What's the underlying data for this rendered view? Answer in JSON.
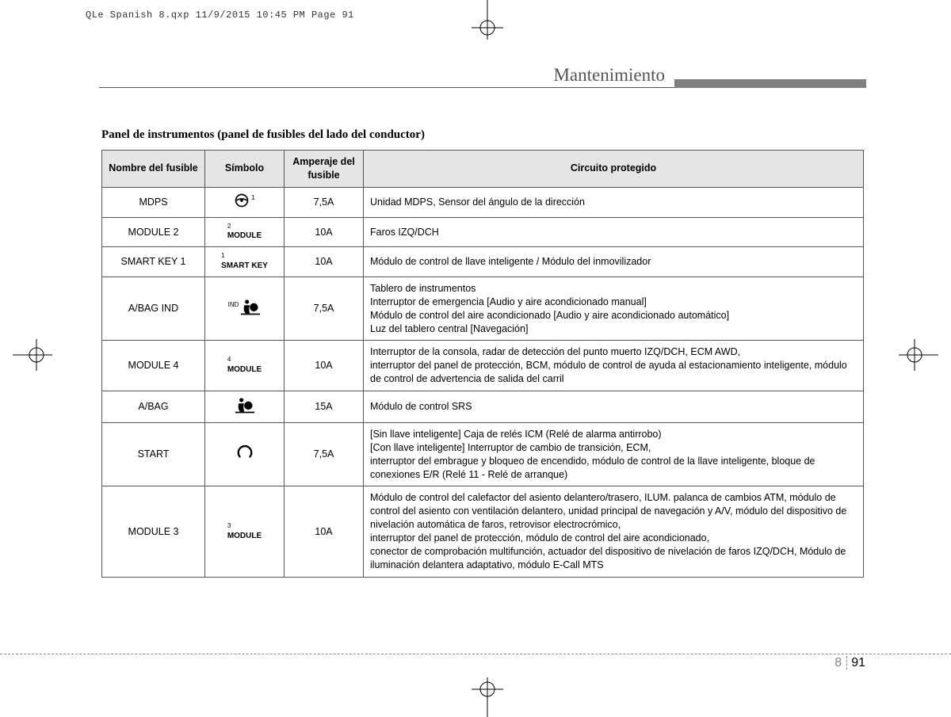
{
  "print_header": "QLe Spanish 8.qxp  11/9/2015  10:45 PM  Page 91",
  "section_title": "Mantenimiento",
  "table_title": "Panel de instrumentos (panel de fusibles del lado del conductor)",
  "columns": {
    "c1": "Nombre del fusible",
    "c2": "Símbolo",
    "c3": "Amperaje del fusible",
    "c4": "Circuito protegido"
  },
  "rows": [
    {
      "name": "MDPS",
      "symbol_type": "steer",
      "symbol_sup": "1",
      "amp": "7,5A",
      "desc": "Unidad MDPS, Sensor del ángulo de la dirección"
    },
    {
      "name": "MODULE 2",
      "symbol_type": "text",
      "symbol_text": "MODULE",
      "symbol_sup": "2",
      "amp": "10A",
      "desc": "Faros IZQ/DCH"
    },
    {
      "name": "SMART KEY 1",
      "symbol_type": "text",
      "symbol_text": "SMART KEY",
      "symbol_sup": "1",
      "amp": "10A",
      "desc": "Módulo de control de llave inteligente / Módulo del inmovilizador"
    },
    {
      "name": "A/BAG IND",
      "symbol_type": "airbag",
      "symbol_sup": "IND",
      "amp": "7,5A",
      "desc": "Tablero de instrumentos\nInterruptor de emergencia [Audio y aire acondicionado manual]\nMódulo de control del aire acondicionado [Audio y aire acondicionado automático]\nLuz del tablero central [Navegación]"
    },
    {
      "name": "MODULE 4",
      "symbol_type": "text",
      "symbol_text": "MODULE",
      "symbol_sup": "4",
      "amp": "10A",
      "desc": "Interruptor de la consola, radar de detección del punto muerto IZQ/DCH, ECM AWD,\ninterruptor del panel de protección, BCM, módulo de control de ayuda al estacionamiento inteligente, módulo de control de advertencia de salida del carril"
    },
    {
      "name": "A/BAG",
      "symbol_type": "airbag",
      "symbol_sup": "",
      "amp": "15A",
      "desc": "Módulo de control SRS"
    },
    {
      "name": "START",
      "symbol_type": "arc",
      "symbol_sup": "",
      "amp": "7,5A",
      "desc": "[Sin llave inteligente] Caja de relés ICM (Relé de alarma antirrobo)\n[Con llave inteligente] Interruptor de cambio de transición, ECM,\ninterruptor del embrague y bloqueo de encendido, módulo de control de la llave inteligente, bloque de conexiones E/R (Relé 11 - Relé de arranque)"
    },
    {
      "name": "MODULE 3",
      "symbol_type": "text",
      "symbol_text": "MODULE",
      "symbol_sup": "3",
      "amp": "10A",
      "desc": "Módulo de control del calefactor del asiento delantero/trasero, ILUM. palanca de cambios ATM, módulo de control del asiento con ventilación delantero, unidad principal de navegación y A/V, módulo del dispositivo de nivelación automática de faros, retrovisor electrocrómico,\ninterruptor del panel de protección, módulo de control del aire acondicionado,\nconector de comprobación multifunción, actuador del dispositivo de nivelación de faros IZQ/DCH, Módulo de iluminación delantera adaptativo, módulo E-Call MTS"
    }
  ],
  "page": {
    "section": "8",
    "number": "91"
  }
}
